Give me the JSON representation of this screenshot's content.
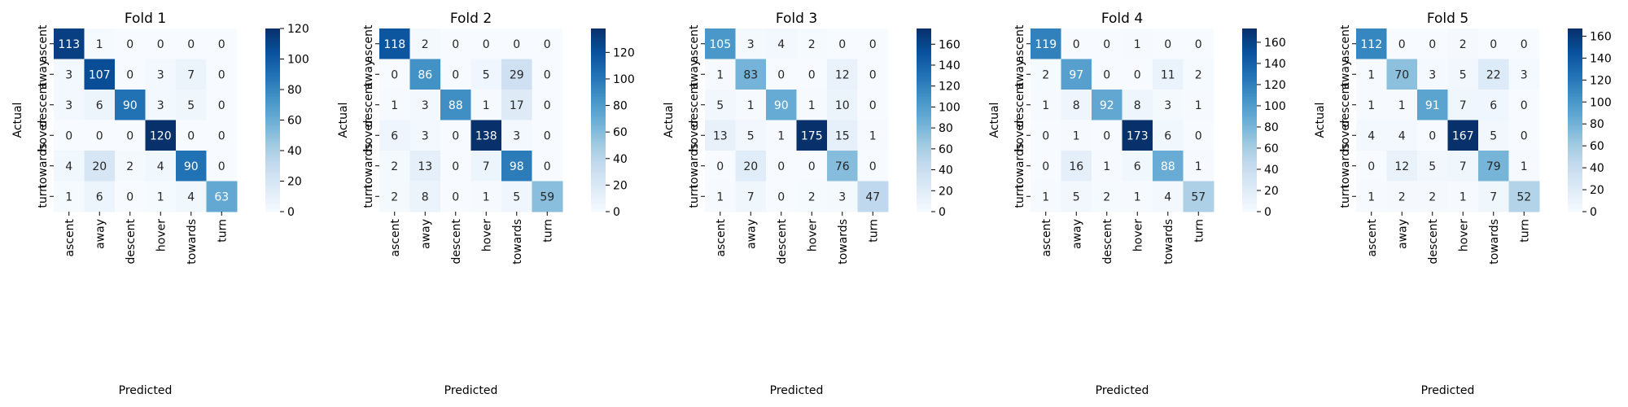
{
  "chart_data": [
    {
      "type": "heatmap",
      "title": "Fold 1",
      "xlabel": "Predicted",
      "ylabel": "Actual",
      "x_categories": [
        "ascent",
        "away",
        "descent",
        "hover",
        "towards",
        "turn"
      ],
      "y_categories": [
        "ascent",
        "away",
        "descent",
        "hover",
        "towards",
        "turn"
      ],
      "values": [
        [
          113,
          1,
          0,
          0,
          0,
          0
        ],
        [
          3,
          107,
          0,
          3,
          7,
          0
        ],
        [
          3,
          6,
          90,
          3,
          5,
          0
        ],
        [
          0,
          0,
          0,
          120,
          0,
          0
        ],
        [
          4,
          20,
          2,
          4,
          90,
          0
        ],
        [
          1,
          6,
          0,
          1,
          4,
          63
        ]
      ],
      "colorbar": {
        "min": 0,
        "max": 120,
        "ticks": [
          0,
          20,
          40,
          60,
          80,
          100,
          120
        ],
        "colormap": "Blues"
      }
    },
    {
      "type": "heatmap",
      "title": "Fold 2",
      "xlabel": "Predicted",
      "ylabel": "Actual",
      "x_categories": [
        "ascent",
        "away",
        "descent",
        "hover",
        "towards",
        "turn"
      ],
      "y_categories": [
        "ascent",
        "away",
        "descent",
        "hover",
        "towards",
        "turn"
      ],
      "values": [
        [
          118,
          2,
          0,
          0,
          0,
          0
        ],
        [
          0,
          86,
          0,
          5,
          29,
          0
        ],
        [
          1,
          3,
          88,
          1,
          17,
          0
        ],
        [
          6,
          3,
          0,
          138,
          3,
          0
        ],
        [
          2,
          13,
          0,
          7,
          98,
          0
        ],
        [
          2,
          8,
          0,
          1,
          5,
          59
        ]
      ],
      "colorbar": {
        "min": 0,
        "max": 138,
        "ticks": [
          0,
          20,
          40,
          60,
          80,
          100,
          120
        ],
        "colormap": "Blues"
      }
    },
    {
      "type": "heatmap",
      "title": "Fold 3",
      "xlabel": "Predicted",
      "ylabel": "Actual",
      "x_categories": [
        "ascent",
        "away",
        "descent",
        "hover",
        "towards",
        "turn"
      ],
      "y_categories": [
        "ascent",
        "away",
        "descent",
        "hover",
        "towards",
        "turn"
      ],
      "values": [
        [
          105,
          3,
          4,
          2,
          0,
          0
        ],
        [
          1,
          83,
          0,
          0,
          12,
          0
        ],
        [
          5,
          1,
          90,
          1,
          10,
          0
        ],
        [
          13,
          5,
          1,
          175,
          15,
          1
        ],
        [
          0,
          20,
          0,
          0,
          76,
          0
        ],
        [
          1,
          7,
          0,
          2,
          3,
          47
        ]
      ],
      "colorbar": {
        "min": 0,
        "max": 175,
        "ticks": [
          0,
          20,
          40,
          60,
          80,
          100,
          120,
          140,
          160
        ],
        "colormap": "Blues"
      }
    },
    {
      "type": "heatmap",
      "title": "Fold 4",
      "xlabel": "Predicted",
      "ylabel": "Actual",
      "x_categories": [
        "ascent",
        "away",
        "descent",
        "hover",
        "towards",
        "turn"
      ],
      "y_categories": [
        "ascent",
        "away",
        "descent",
        "hover",
        "towards",
        "turn"
      ],
      "values": [
        [
          119,
          0,
          0,
          1,
          0,
          0
        ],
        [
          2,
          97,
          0,
          0,
          11,
          2
        ],
        [
          1,
          8,
          92,
          8,
          3,
          1
        ],
        [
          0,
          1,
          0,
          173,
          6,
          0
        ],
        [
          0,
          16,
          1,
          6,
          88,
          1
        ],
        [
          1,
          5,
          2,
          1,
          4,
          57
        ]
      ],
      "colorbar": {
        "min": 0,
        "max": 173,
        "ticks": [
          0,
          20,
          40,
          60,
          80,
          100,
          120,
          140,
          160
        ],
        "colormap": "Blues"
      }
    },
    {
      "type": "heatmap",
      "title": "Fold 5",
      "xlabel": "Predicted",
      "ylabel": "Actual",
      "x_categories": [
        "ascent",
        "away",
        "descent",
        "hover",
        "towards",
        "turn"
      ],
      "y_categories": [
        "ascent",
        "away",
        "descent",
        "hover",
        "towards",
        "turn"
      ],
      "values": [
        [
          112,
          0,
          0,
          2,
          0,
          0
        ],
        [
          1,
          70,
          3,
          5,
          22,
          3
        ],
        [
          1,
          1,
          91,
          7,
          6,
          0
        ],
        [
          4,
          4,
          0,
          167,
          5,
          0
        ],
        [
          0,
          12,
          5,
          7,
          79,
          1
        ],
        [
          1,
          2,
          2,
          1,
          7,
          52
        ]
      ],
      "colorbar": {
        "min": 0,
        "max": 167,
        "ticks": [
          0,
          20,
          40,
          60,
          80,
          100,
          120,
          140,
          160
        ],
        "colormap": "Blues"
      }
    }
  ]
}
